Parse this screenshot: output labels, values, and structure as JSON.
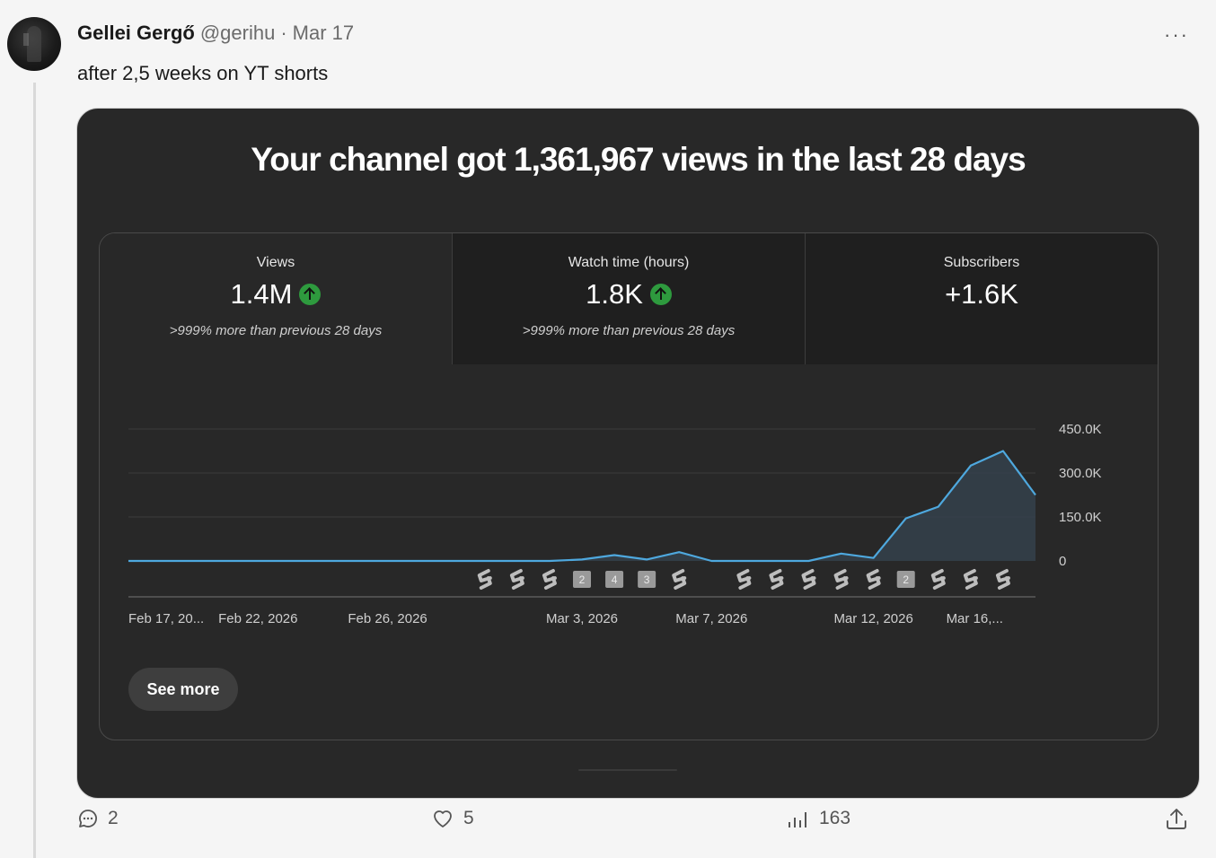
{
  "post": {
    "author": "Gellei Gergő",
    "handle": "@gerihu",
    "separator": "·",
    "date": "Mar 17",
    "more_label": "···",
    "text": "after 2,5 weeks on YT shorts"
  },
  "card": {
    "title": "Your channel got 1,361,967 views in the last 28 days",
    "see_more_label": "See more",
    "stats": [
      {
        "label": "Views",
        "value": "1.4M",
        "trend": "up",
        "sub": ">999% more than previous 28 days"
      },
      {
        "label": "Watch time (hours)",
        "value": "1.8K",
        "trend": "up",
        "sub": ">999% more than previous 28 days"
      },
      {
        "label": "Subscribers",
        "value": "+1.6K",
        "trend": "",
        "sub": ""
      }
    ]
  },
  "chart_data": {
    "type": "area",
    "title": "",
    "xlabel": "",
    "ylabel": "",
    "y_axis_side": "right",
    "ylim": [
      0,
      450000
    ],
    "y_ticks": [
      0,
      150000,
      300000,
      450000
    ],
    "y_tick_labels": [
      "0",
      "150.0K",
      "300.0K",
      "450.0K"
    ],
    "x_tick_labels": [
      "Feb 17, 20...",
      "Feb 22, 2026",
      "Feb 26, 2026",
      "Mar 3, 2026",
      "Mar 7, 2026",
      "Mar 12, 2026",
      "Mar 16,..."
    ],
    "x_tick_indices": [
      0,
      4,
      8,
      14,
      18,
      23,
      27
    ],
    "series": [
      {
        "values": [
          0,
          0,
          0,
          0,
          0,
          0,
          0,
          0,
          0,
          0,
          0,
          0,
          0,
          0,
          5000,
          20000,
          5000,
          30000,
          0,
          0,
          0,
          0,
          25000,
          10000,
          145000,
          185000,
          325000,
          375000,
          225000
        ],
        "color": "#4ea8de"
      }
    ],
    "grid": true,
    "upload_markers": [
      {
        "index": 11,
        "type": "short"
      },
      {
        "index": 12,
        "type": "short"
      },
      {
        "index": 13,
        "type": "short"
      },
      {
        "index": 14,
        "type": "count",
        "count": "2"
      },
      {
        "index": 15,
        "type": "count",
        "count": "4"
      },
      {
        "index": 16,
        "type": "count",
        "count": "3"
      },
      {
        "index": 17,
        "type": "short"
      },
      {
        "index": 19,
        "type": "short"
      },
      {
        "index": 20,
        "type": "short"
      },
      {
        "index": 21,
        "type": "short"
      },
      {
        "index": 22,
        "type": "short"
      },
      {
        "index": 23,
        "type": "short"
      },
      {
        "index": 24,
        "type": "count",
        "count": "2"
      },
      {
        "index": 25,
        "type": "short"
      },
      {
        "index": 26,
        "type": "short"
      },
      {
        "index": 27,
        "type": "short"
      }
    ]
  },
  "actions": {
    "replies": "2",
    "likes": "5",
    "views": "163"
  },
  "colors": {
    "card_bg": "#282828",
    "line": "#4ea8de",
    "area": "#34414b",
    "up_green": "#2e9a3e"
  }
}
